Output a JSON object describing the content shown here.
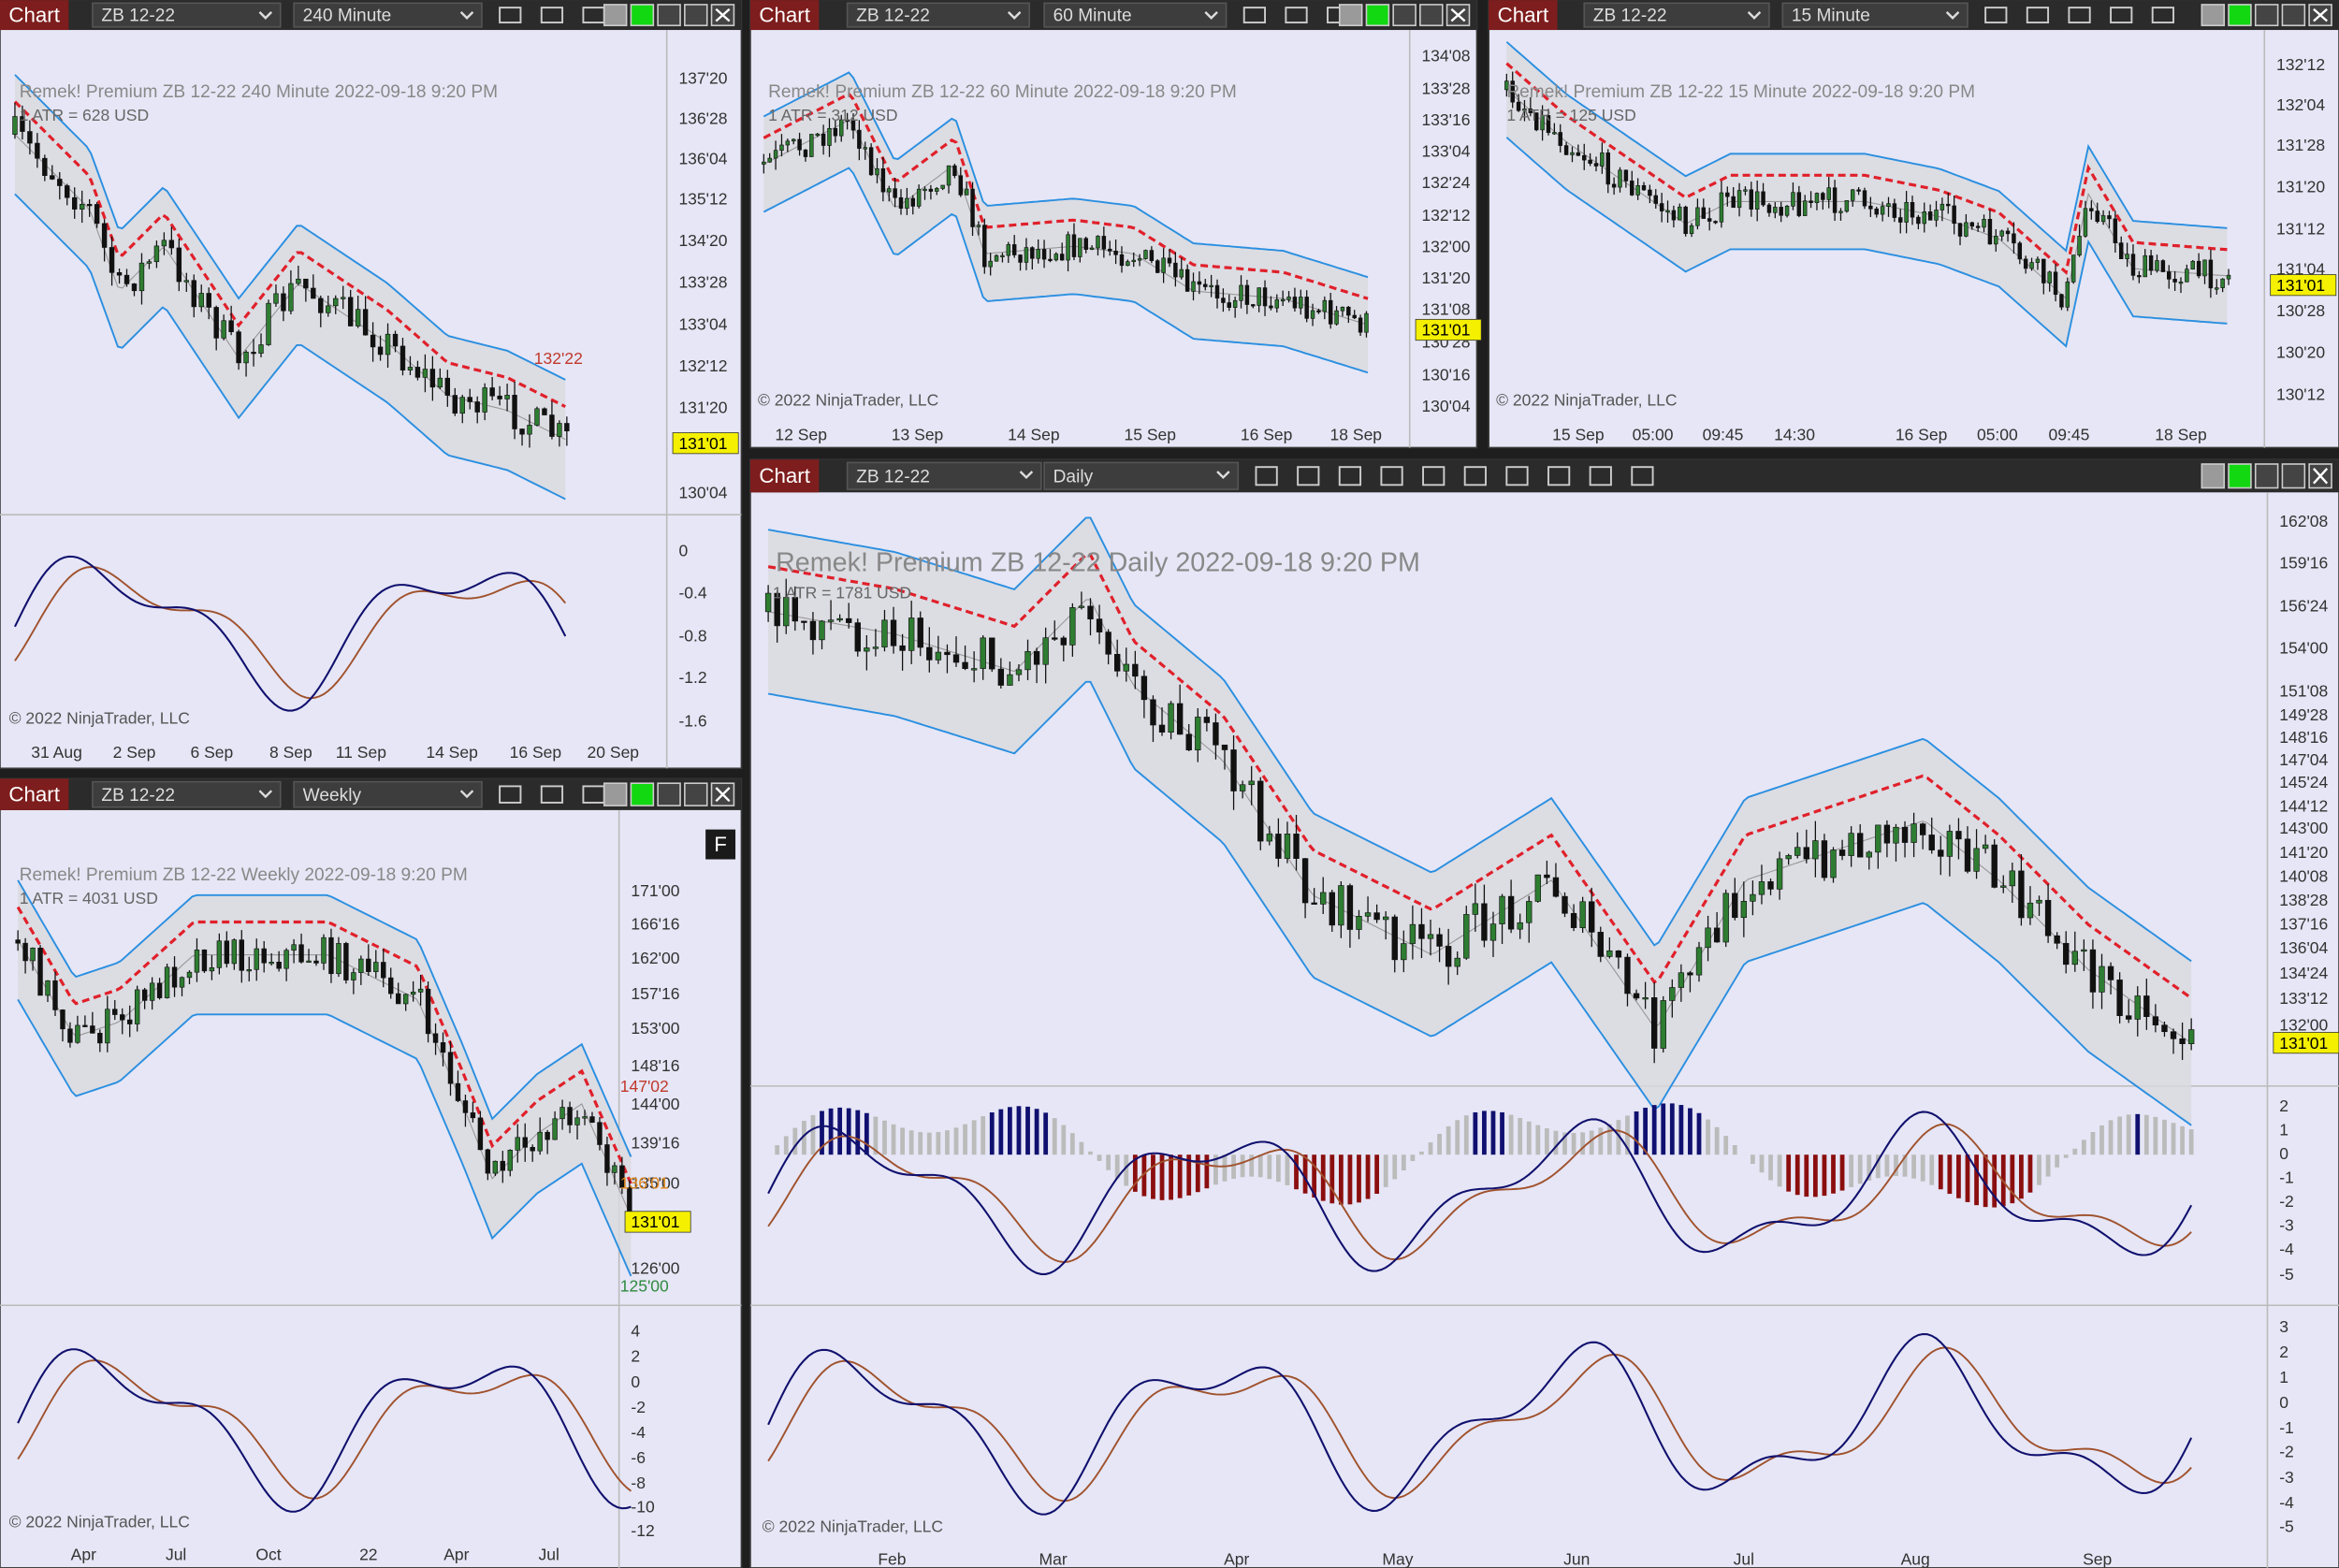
{
  "windows": [
    {
      "toolbar": {
        "label": "Chart",
        "instrument": "ZB 12-22",
        "interval": "240 Minute"
      },
      "header": "Remek!  Premium  ZB 12-22  240 Minute  2022-09-18 9:20 PM",
      "atr": "1 ATR = 628 USD",
      "price_labels": [
        "137'20",
        "136'28",
        "136'04",
        "135'12",
        "134'20",
        "133'28",
        "133'04",
        "132'12",
        "131'20",
        "130'04"
      ],
      "last_price": "131'01",
      "annotations": [
        "132'22"
      ],
      "indicator_labels": [
        [
          "0",
          "-0.4",
          "-0.8",
          "-1.2",
          "-1.6"
        ]
      ],
      "time_labels": [
        "31 Aug",
        "2 Sep",
        "6 Sep",
        "8 Sep",
        "11 Sep",
        "14 Sep",
        "16 Sep",
        "20 Sep"
      ],
      "copyright": "© 2022 NinjaTrader, LLC"
    },
    {
      "toolbar": {
        "label": "Chart",
        "instrument": "ZB 12-22",
        "interval": "60 Minute"
      },
      "header": "Remek!  Premium  ZB 12-22  60 Minute  2022-09-18 9:20 PM",
      "atr": "1 ATR = 312 USD",
      "price_labels": [
        "134'08",
        "133'28",
        "133'16",
        "133'04",
        "132'24",
        "132'12",
        "132'00",
        "131'20",
        "131'08",
        "130'28",
        "130'16",
        "130'04"
      ],
      "last_price": "131'01",
      "annotations": [],
      "indicator_labels": [],
      "time_labels": [
        "12 Sep",
        "13 Sep",
        "14 Sep",
        "15 Sep",
        "16 Sep",
        "18 Sep"
      ],
      "copyright": "© 2022 NinjaTrader, LLC"
    },
    {
      "toolbar": {
        "label": "Chart",
        "instrument": "ZB 12-22",
        "interval": "15 Minute"
      },
      "header": "Remek!  Premium  ZB 12-22  15 Minute  2022-09-18 9:20 PM",
      "atr": "1 ATR = 125 USD",
      "price_labels": [
        "132'12",
        "132'04",
        "131'28",
        "131'20",
        "131'12",
        "131'04",
        "130'28",
        "130'20",
        "130'12"
      ],
      "last_price": "131'01",
      "annotations": [],
      "indicator_labels": [],
      "time_labels": [
        "15 Sep",
        "05:00",
        "09:45",
        "14:30",
        "16 Sep",
        "05:00",
        "09:45",
        "18 Sep"
      ],
      "copyright": "© 2022 NinjaTrader, LLC"
    },
    {
      "toolbar": {
        "label": "Chart",
        "instrument": "ZB 12-22",
        "interval": "Weekly"
      },
      "header": "Remek!  Premium  ZB 12-22  Weekly  2022-09-18 9:20 PM",
      "atr": "1 ATR = 4031 USD",
      "price_labels": [
        "171'00",
        "166'16",
        "162'00",
        "157'16",
        "153'00",
        "148'16",
        "144'00",
        "139'16",
        "135'00",
        "126'00"
      ],
      "last_price": "131'01",
      "annotations": [
        "147'02",
        "136'01",
        "125'00"
      ],
      "indicator_labels": [
        [
          "4",
          "2",
          "0",
          "-2",
          "-4",
          "-6",
          "-8",
          "-10",
          "-12"
        ]
      ],
      "time_labels": [
        "Apr",
        "Jul",
        "Oct",
        "22",
        "Apr",
        "Jul"
      ],
      "copyright": "© 2022 NinjaTrader, LLC",
      "badge": "F"
    },
    {
      "toolbar": {
        "label": "Chart",
        "instrument": "ZB 12-22",
        "interval": "Daily"
      },
      "header": "Remek!  Premium  ZB 12-22  Daily  2022-09-18 9:20 PM",
      "atr": "1 ATR = 1781 USD",
      "price_labels": [
        "162'08",
        "159'16",
        "156'24",
        "154'00",
        "151'08",
        "149'28",
        "148'16",
        "147'04",
        "145'24",
        "144'12",
        "143'00",
        "141'20",
        "140'08",
        "138'28",
        "137'16",
        "136'04",
        "134'24",
        "133'12",
        "132'00"
      ],
      "last_price": "131'01",
      "annotations": [],
      "indicator_labels": [
        [
          "2",
          "1",
          "0",
          "-1",
          "-2",
          "-3",
          "-4",
          "-5"
        ],
        [
          "3",
          "2",
          "1",
          "0",
          "-1",
          "-2",
          "-3",
          "-4",
          "-5"
        ]
      ],
      "time_labels": [
        "Feb",
        "Mar",
        "Apr",
        "May",
        "Jun",
        "Jul",
        "Aug",
        "Sep"
      ],
      "copyright": "© 2022 NinjaTrader, LLC"
    }
  ]
}
